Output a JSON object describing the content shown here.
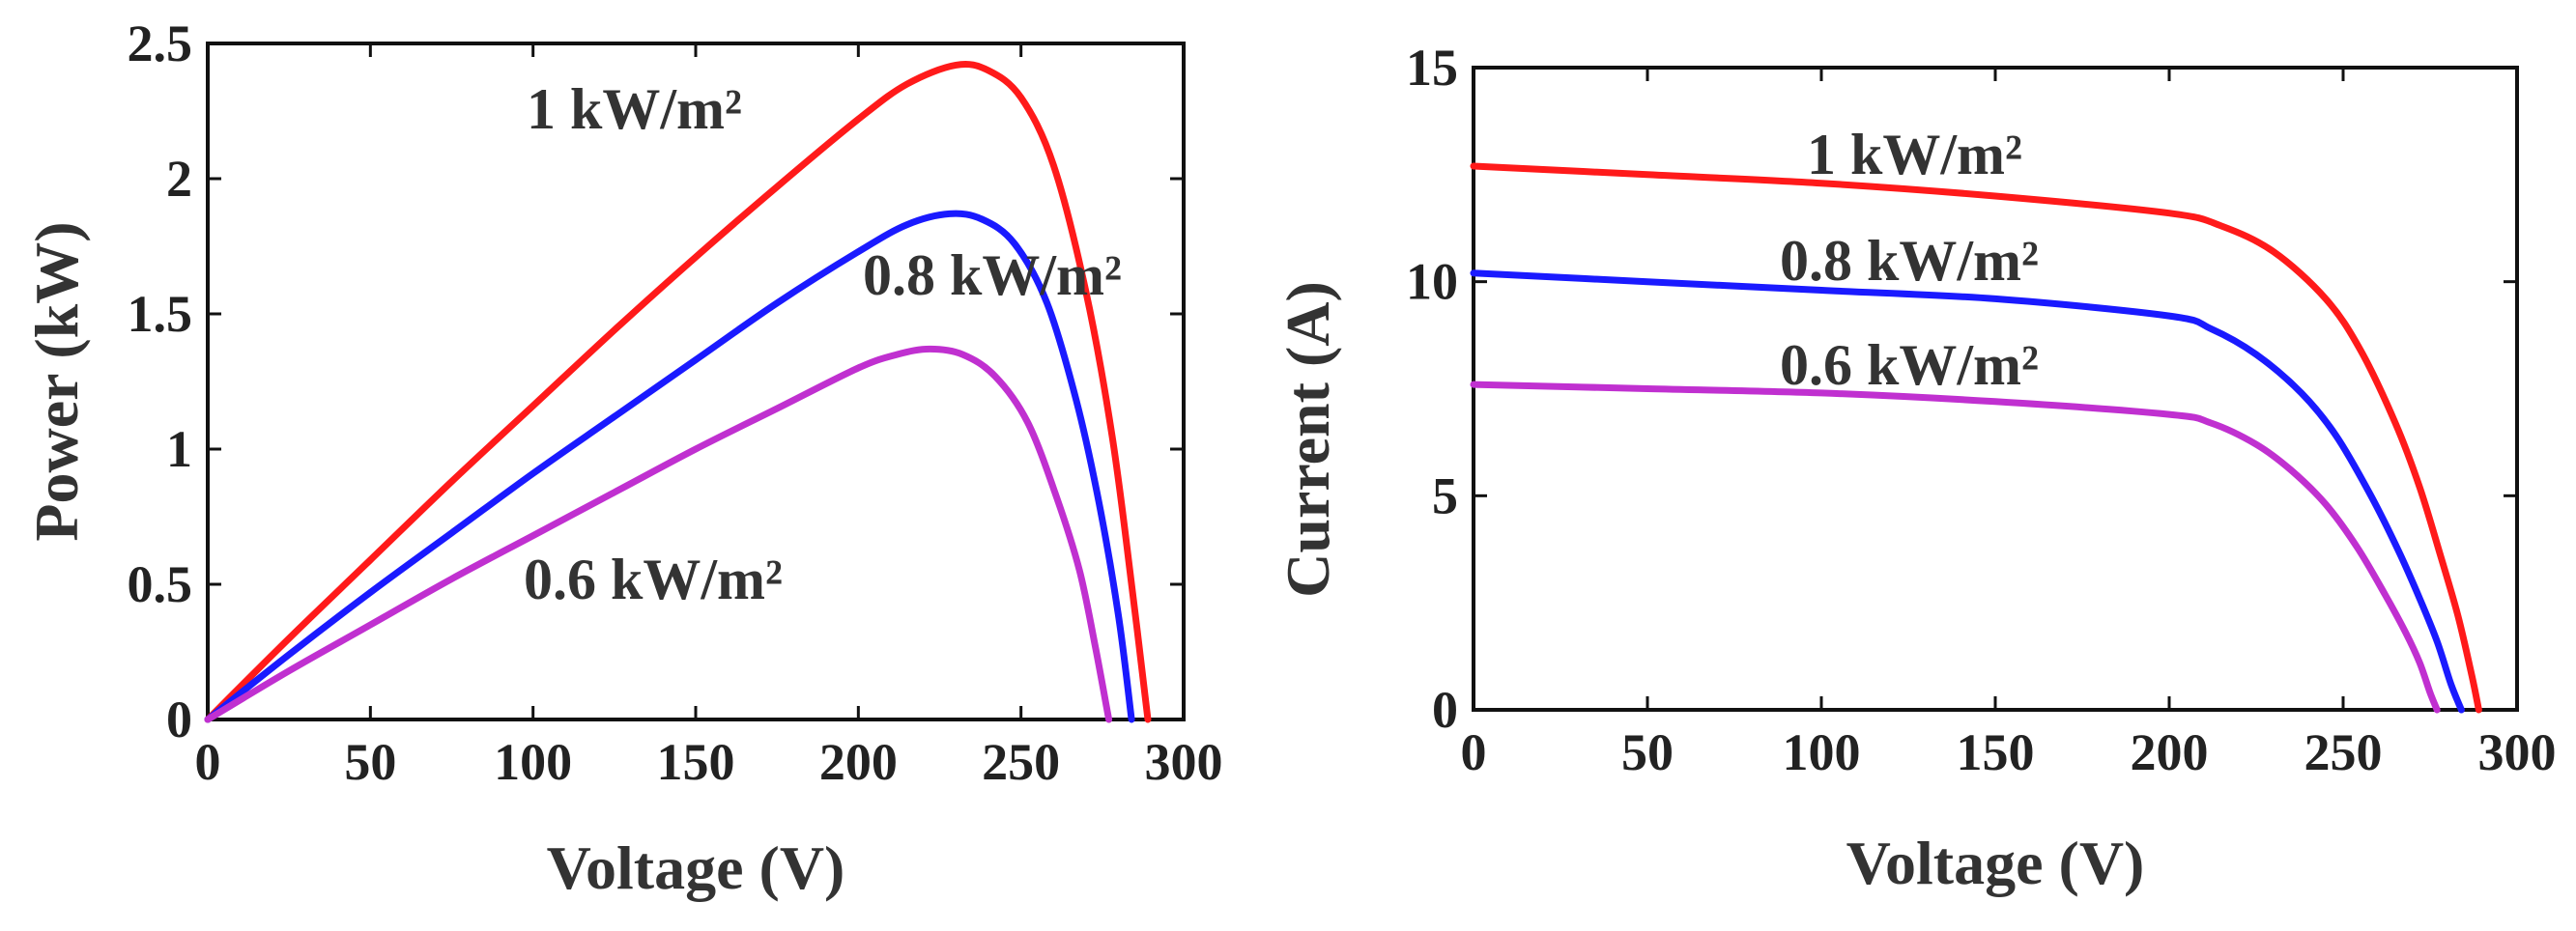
{
  "chart_data": [
    {
      "type": "line",
      "title": "",
      "xlabel": "Voltage (V)",
      "ylabel": "Power (kW)",
      "xlim": [
        0,
        300
      ],
      "ylim": [
        0,
        2.5
      ],
      "xticks": [
        "0",
        "50",
        "100",
        "150",
        "200",
        "250",
        "300"
      ],
      "yticks": [
        "0",
        "0.5",
        "1",
        "1.5",
        "2",
        "2.5"
      ],
      "series": [
        {
          "name": "1 kW/m²",
          "color": "#ff1a1a",
          "x": [
            0,
            25,
            50,
            75,
            100,
            125,
            150,
            175,
            200,
            215,
            230,
            240,
            250,
            260,
            270,
            278,
            284,
            289
          ],
          "y": [
            0,
            0.3,
            0.59,
            0.88,
            1.16,
            1.44,
            1.71,
            1.97,
            2.22,
            2.35,
            2.42,
            2.4,
            2.3,
            2.05,
            1.58,
            1.05,
            0.5,
            0
          ]
        },
        {
          "name": "0.8 kW/m²",
          "color": "#1a1aff",
          "x": [
            0,
            25,
            50,
            75,
            100,
            125,
            150,
            175,
            200,
            215,
            228,
            238,
            248,
            258,
            267,
            274,
            280,
            284
          ],
          "y": [
            0,
            0.24,
            0.47,
            0.69,
            0.91,
            1.12,
            1.33,
            1.54,
            1.73,
            1.83,
            1.87,
            1.85,
            1.76,
            1.54,
            1.18,
            0.8,
            0.38,
            0
          ]
        },
        {
          "name": "0.6 kW/m²",
          "color": "#c030d0",
          "x": [
            0,
            25,
            50,
            75,
            100,
            125,
            150,
            175,
            200,
            212,
            222,
            232,
            242,
            252,
            261,
            268,
            273,
            277
          ],
          "y": [
            0,
            0.18,
            0.35,
            0.52,
            0.68,
            0.84,
            1.0,
            1.15,
            1.3,
            1.35,
            1.37,
            1.35,
            1.27,
            1.1,
            0.82,
            0.55,
            0.26,
            0
          ]
        }
      ]
    },
    {
      "type": "line",
      "title": "",
      "xlabel": "Voltage (V)",
      "ylabel": "Current (A)",
      "xlim": [
        0,
        300
      ],
      "ylim": [
        0,
        15
      ],
      "xticks": [
        "0",
        "50",
        "100",
        "150",
        "200",
        "250",
        "300"
      ],
      "yticks": [
        "0",
        "5",
        "10",
        "15"
      ],
      "series": [
        {
          "name": "1 kW/m²",
          "color": "#ff1a1a",
          "x": [
            0,
            50,
            100,
            150,
            200,
            215,
            230,
            245,
            255,
            265,
            272,
            278,
            283,
            287,
            289
          ],
          "y": [
            12.7,
            12.5,
            12.3,
            12.0,
            11.6,
            11.3,
            10.7,
            9.6,
            8.4,
            6.7,
            5.2,
            3.6,
            2.2,
            0.8,
            0
          ]
        },
        {
          "name": "0.8 kW/m²",
          "color": "#1a1aff",
          "x": [
            0,
            50,
            100,
            150,
            200,
            212,
            225,
            238,
            248,
            258,
            266,
            272,
            277,
            281,
            284
          ],
          "y": [
            10.2,
            10.0,
            9.8,
            9.6,
            9.2,
            8.9,
            8.3,
            7.4,
            6.4,
            5.0,
            3.7,
            2.6,
            1.6,
            0.6,
            0
          ]
        },
        {
          "name": "0.6 kW/m²",
          "color": "#c030d0",
          "x": [
            0,
            50,
            100,
            150,
            200,
            212,
            225,
            235,
            245,
            254,
            262,
            268,
            272,
            275,
            277
          ],
          "y": [
            7.6,
            7.5,
            7.4,
            7.2,
            6.9,
            6.7,
            6.2,
            5.6,
            4.8,
            3.8,
            2.7,
            1.8,
            1.1,
            0.4,
            0
          ]
        }
      ]
    }
  ]
}
